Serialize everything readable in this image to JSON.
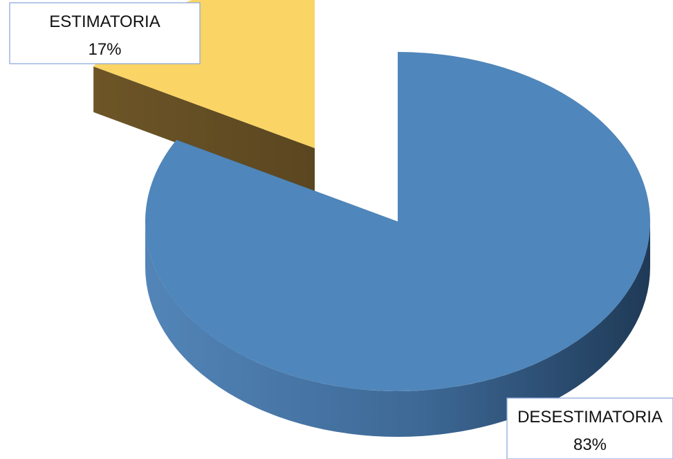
{
  "chart_data": {
    "type": "pie",
    "title": "",
    "categories": [
      "ESTIMATORIA",
      "DESESTIMATORIA"
    ],
    "values": [
      17,
      83
    ],
    "value_unit": "%",
    "style": "3d-exploded",
    "legend": "none",
    "colors": {
      "ESTIMATORIA": "#fad566",
      "DESESTIMATORIA": "#4f86bb"
    },
    "data_labels": [
      {
        "category": "ESTIMATORIA",
        "value_text": "17%"
      },
      {
        "category": "DESESTIMATORIA",
        "value_text": "83%"
      }
    ]
  }
}
